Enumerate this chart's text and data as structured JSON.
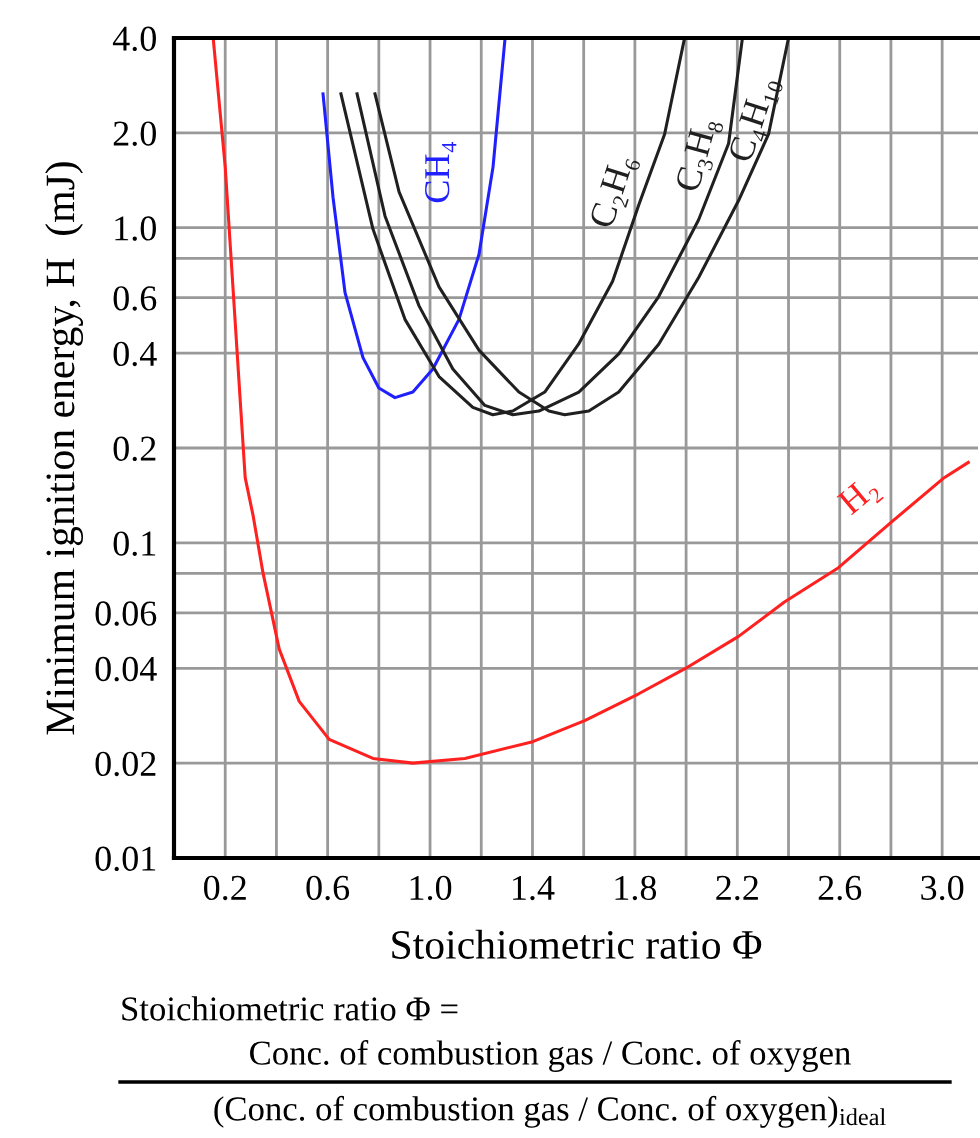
{
  "chart_data": {
    "type": "line",
    "xlabel": "Stoichiometric ratio Φ",
    "ylabel": "Minimum ignition energy, H  (mJ)",
    "log": "y",
    "grid": true,
    "legend": false,
    "marker": "none",
    "line_style": "solid",
    "xlim": [
      0,
      3.14
    ],
    "xticks": [
      0.2,
      {
        "value": 0.4,
        "label": null
      },
      0.6,
      {
        "value": 0.8,
        "label": null
      },
      {
        "value": 1.0,
        "label": "1.0"
      },
      {
        "value": 1.2,
        "label": null
      },
      1.4,
      {
        "value": 1.6,
        "label": null
      },
      1.8,
      {
        "value": 2.0,
        "label": null
      },
      2.2,
      {
        "value": 2.4,
        "label": null
      },
      2.6,
      {
        "value": 2.8,
        "label": null
      },
      {
        "value": 3.0,
        "label": "3.0"
      }
    ],
    "ylim": [
      0.01,
      4.0
    ],
    "yticks": [
      0.01,
      0.02,
      0.04,
      0.06,
      {
        "value": 0.08,
        "label": null
      },
      0.1,
      0.2,
      0.4,
      0.6,
      {
        "value": 0.8,
        "label": null
      },
      {
        "value": 1.0,
        "label": "1.0"
      },
      {
        "value": 2.0,
        "label": "2.0"
      },
      {
        "value": 4.0,
        "label": "4.0"
      }
    ],
    "series": [
      {
        "name": "CH₄",
        "color": "#2020ff",
        "x": [
          0.582,
          0.621,
          0.668,
          0.738,
          0.8,
          0.863,
          0.933,
          1.011,
          1.113,
          1.191,
          1.246,
          1.293
        ],
        "values": [
          2.66,
          1.25,
          0.622,
          0.387,
          0.31,
          0.289,
          0.301,
          0.356,
          0.512,
          0.823,
          1.56,
          4.0
        ]
      },
      {
        "name": "C₂H₆",
        "color": "#202020",
        "x": [
          0.652,
          0.777,
          0.902,
          1.035,
          1.167,
          1.245,
          1.323,
          1.448,
          1.58,
          1.713,
          1.815,
          1.916,
          1.994
        ],
        "values": [
          2.66,
          0.99,
          0.512,
          0.337,
          0.269,
          0.255,
          0.262,
          0.301,
          0.427,
          0.676,
          1.18,
          1.98,
          4.0
        ]
      },
      {
        "name": "C₃H₈",
        "color": "#202020",
        "x": [
          0.715,
          0.824,
          0.957,
          1.089,
          1.214,
          1.323,
          1.425,
          1.581,
          1.737,
          1.893,
          2.049,
          2.166,
          2.22
        ],
        "values": [
          2.66,
          1.09,
          0.565,
          0.356,
          0.273,
          0.255,
          0.262,
          0.301,
          0.398,
          0.605,
          1.06,
          1.85,
          4.0
        ]
      },
      {
        "name": "C₄H₁₀",
        "color": "#202020",
        "x": [
          0.785,
          0.879,
          1.035,
          1.191,
          1.347,
          1.464,
          1.526,
          1.62,
          1.737,
          1.893,
          2.049,
          2.205,
          2.322,
          2.4
        ],
        "values": [
          2.66,
          1.3,
          0.649,
          0.409,
          0.301,
          0.262,
          0.255,
          0.262,
          0.301,
          0.427,
          0.695,
          1.22,
          1.98,
          4.0
        ]
      },
      {
        "name": "H₂",
        "color": "#ff2020",
        "x": [
          0.153,
          0.2,
          0.278,
          0.309,
          0.348,
          0.411,
          0.489,
          0.606,
          0.777,
          0.933,
          1.136,
          1.401,
          1.604,
          1.815,
          1.994,
          2.205,
          2.384,
          2.595,
          2.805,
          3.008,
          3.102
        ],
        "values": [
          4.0,
          1.56,
          0.161,
          0.122,
          0.08,
          0.046,
          0.0314,
          0.0238,
          0.0207,
          0.02,
          0.0207,
          0.0234,
          0.0273,
          0.0332,
          0.0398,
          0.0505,
          0.0649,
          0.0834,
          0.117,
          0.161,
          0.18
        ]
      }
    ],
    "annotations": [
      "Stoichiometric ratio Φ =",
      "Conc. of combustion gas / Conc. of oxygen",
      "(Conc. of combustion gas / Conc. of oxygen)$_{ideal}$"
    ]
  }
}
